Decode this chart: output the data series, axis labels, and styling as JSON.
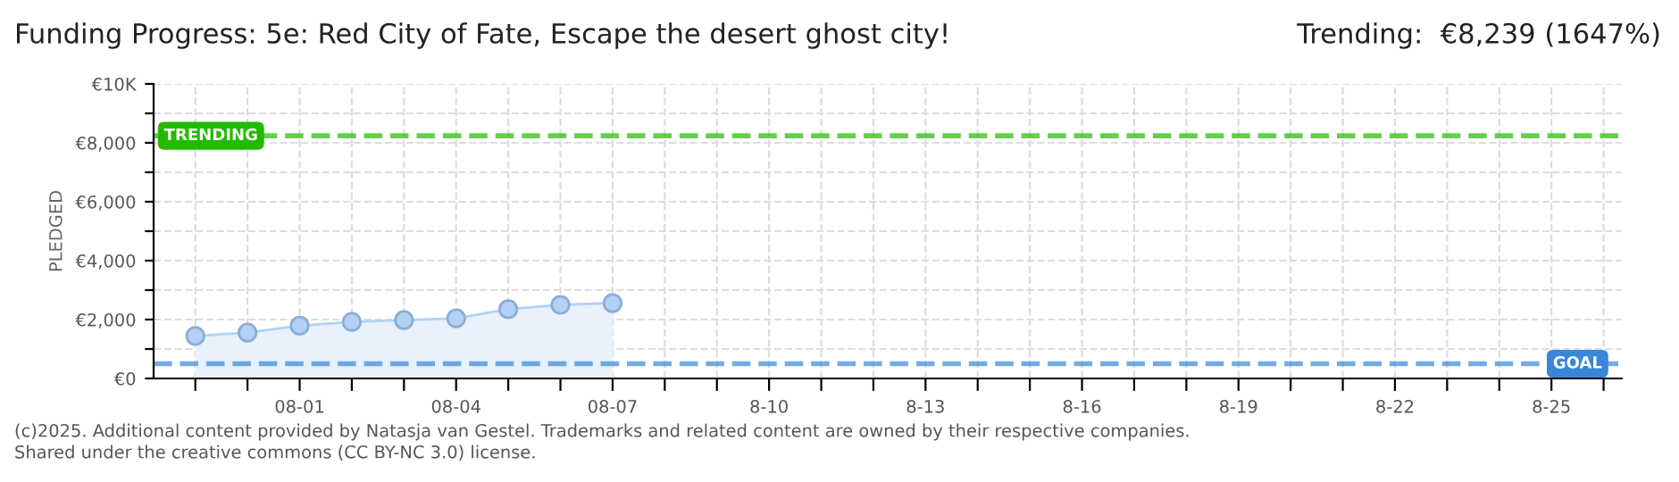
{
  "chart_data": {
    "type": "area",
    "title": "Funding Progress: 5e: Red City of Fate, Escape the desert ghost city!",
    "subtitle": "Trending:  €8,239 (1647%)",
    "ylabel": "PLEDGED",
    "categories": [
      null,
      null,
      "08-01",
      null,
      null,
      "08-04",
      null,
      null,
      "08-07",
      null,
      null,
      "8-10",
      null,
      null,
      "8-13",
      null,
      null,
      "8-16",
      null,
      null,
      "8-19",
      null,
      null,
      "8-22",
      null,
      null,
      "8-25",
      null
    ],
    "series": [
      {
        "color": "#b3d1f5",
        "values": [
          1440,
          1560,
          1790,
          1920,
          1980,
          2040,
          2350,
          2500,
          2560,
          null,
          null,
          null,
          null,
          null,
          null,
          null,
          null,
          null,
          null,
          null,
          null,
          null,
          null,
          null,
          null,
          null,
          null,
          null
        ]
      }
    ],
    "ylim": [
      0,
      10000
    ],
    "yticks": [
      {
        "value": 0,
        "label": "€0"
      },
      {
        "value": 1000,
        "label": null
      },
      {
        "value": 2000,
        "label": "€2,000"
      },
      {
        "value": 3000,
        "label": null
      },
      {
        "value": 4000,
        "label": "€4,000"
      },
      {
        "value": 5000,
        "label": null
      },
      {
        "value": 6000,
        "label": "€6,000"
      },
      {
        "value": 7000,
        "label": null
      },
      {
        "value": 8000,
        "label": "€8,000"
      },
      {
        "value": 9000,
        "label": null
      },
      {
        "value": 10000,
        "label": "€10K"
      }
    ],
    "ref_lines": [
      {
        "axis": "y",
        "value": 8239,
        "label": "TRENDING",
        "color": "#22bb00",
        "line_style": "dashed"
      },
      {
        "axis": "y",
        "value": 500,
        "label": "GOAL",
        "color": "#3a87d9",
        "line_style": "dashed"
      }
    ],
    "grid": true,
    "marker": "circle",
    "annotations": [
      "(c)2025. Additional content provided by Natasja van Gestel. Trademarks and related content are owned by their respective companies.",
      "Shared under the creative commons (CC BY-NC 3.0) license."
    ]
  }
}
